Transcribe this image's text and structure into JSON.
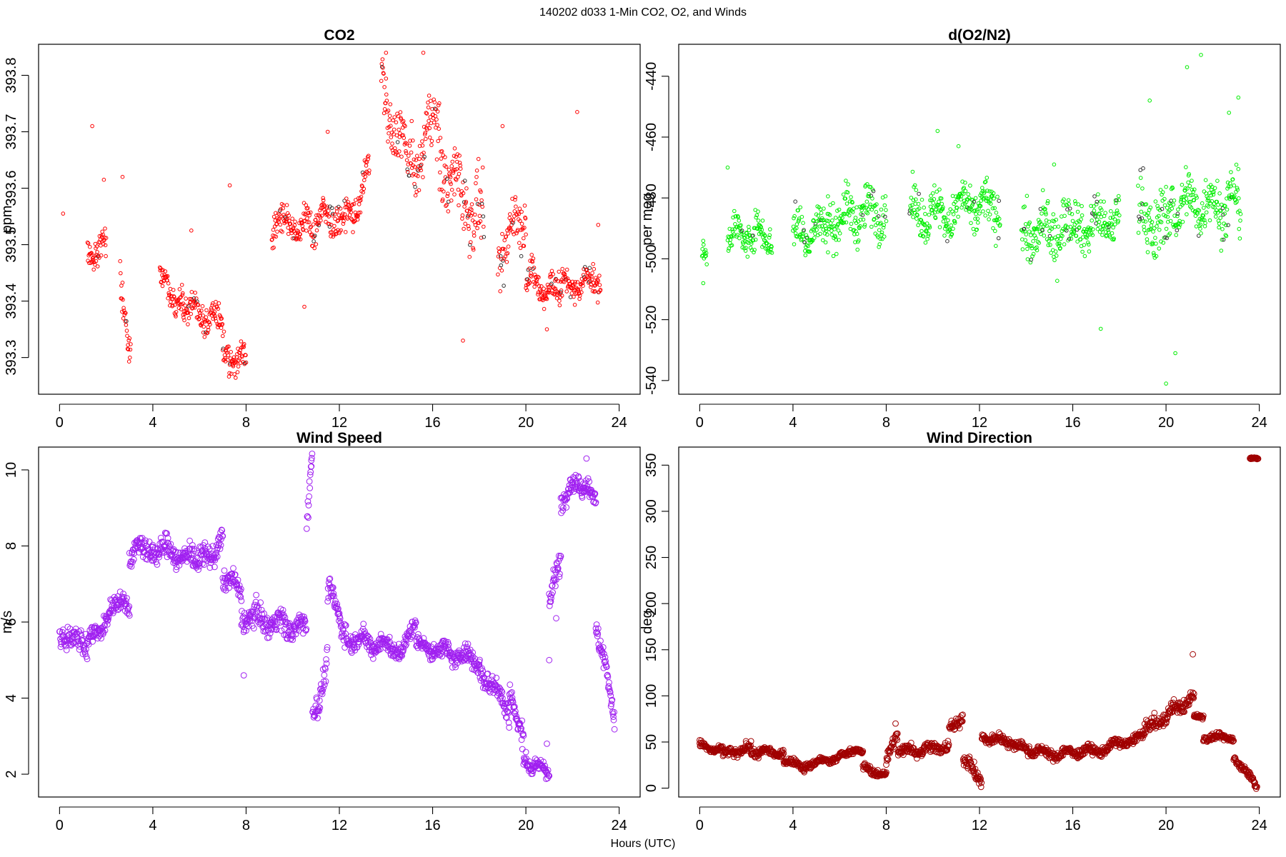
{
  "figure": {
    "suptitle": "140202   d033   1-Min CO2, O2, and Winds",
    "xlabel": "Hours (UTC)"
  },
  "chart_data": [
    {
      "type": "scatter",
      "title": "CO2",
      "xlabel": "",
      "ylabel": "ppm",
      "xlim": [
        -0.9,
        24.9
      ],
      "ylim": [
        393.235,
        393.855
      ],
      "xticks": [
        0,
        4,
        8,
        12,
        16,
        20,
        24
      ],
      "yticks": [
        393.3,
        393.4,
        393.5,
        393.6,
        393.7,
        393.8
      ],
      "ytick_labels": [
        "393.3",
        "393.4",
        "393.5",
        "393.6",
        "393.7",
        "393.8"
      ],
      "color": "#ff0000",
      "marker_size": 2.3,
      "segments": [
        [
          0.1,
          0.25,
          393.48,
          0.05,
          393.48,
          0.03
        ],
        [
          1.2,
          2.0,
          393.49,
          393.49,
          0.04,
          0.03
        ],
        [
          2.6,
          3.05,
          393.44,
          393.32,
          0.04,
          0.03
        ],
        [
          4.3,
          5.3,
          393.44,
          393.39,
          0.04,
          0.025
        ],
        [
          5.3,
          7.0,
          393.39,
          393.36,
          0.04,
          0.025
        ],
        [
          7.0,
          8.0,
          393.31,
          393.29,
          0.04,
          0.025
        ],
        [
          9.1,
          10.8,
          393.54,
          393.53,
          0.04,
          0.03
        ],
        [
          10.8,
          12.0,
          393.53,
          393.56,
          0.05,
          0.03
        ],
        [
          12.0,
          13.3,
          393.52,
          393.62,
          0.05,
          0.035
        ],
        [
          13.8,
          15.0,
          393.78,
          393.63,
          0.08,
          0.06
        ],
        [
          15.0,
          16.3,
          393.63,
          393.73,
          0.08,
          0.06
        ],
        [
          16.3,
          18.2,
          393.65,
          393.53,
          0.1,
          0.05
        ],
        [
          18.8,
          20.0,
          393.47,
          393.57,
          0.08,
          0.05
        ],
        [
          20.0,
          21.5,
          393.44,
          393.41,
          0.05,
          0.03
        ],
        [
          21.5,
          23.2,
          393.42,
          393.44,
          0.04,
          0.025
        ]
      ],
      "points": [
        {
          "x": 0.15,
          "y": 393.555
        },
        {
          "x": 1.4,
          "y": 393.71
        },
        {
          "x": 1.9,
          "y": 393.615
        },
        {
          "x": 2.7,
          "y": 393.62
        },
        {
          "x": 5.65,
          "y": 393.525
        },
        {
          "x": 7.3,
          "y": 393.605
        },
        {
          "x": 7.4,
          "y": 393.295
        },
        {
          "x": 10.5,
          "y": 393.39
        },
        {
          "x": 11.5,
          "y": 393.7
        },
        {
          "x": 14.0,
          "y": 393.84
        },
        {
          "x": 15.6,
          "y": 393.84
        },
        {
          "x": 17.3,
          "y": 393.33
        },
        {
          "x": 19.0,
          "y": 393.71
        },
        {
          "x": 20.9,
          "y": 393.35
        },
        {
          "x": 22.2,
          "y": 393.735
        },
        {
          "x": 23.1,
          "y": 393.535
        }
      ]
    },
    {
      "type": "scatter",
      "title": "d(O2/N2)",
      "xlabel": "",
      "ylabel": "per meg",
      "xlim": [
        -0.9,
        24.9
      ],
      "ylim": [
        -544.5,
        -429.5
      ],
      "xticks": [
        0,
        4,
        8,
        12,
        16,
        20,
        24
      ],
      "yticks": [
        -540,
        -520,
        -500,
        -480,
        -460,
        -440
      ],
      "ytick_labels": [
        "-540",
        "-520",
        "-500",
        "-480",
        "-460",
        "-440"
      ],
      "color": "#00ee00",
      "marker_size": 2.3,
      "segments": [
        [
          0.1,
          0.3,
          -497,
          -497,
          6,
          4
        ],
        [
          1.2,
          3.1,
          -492,
          -492,
          9,
          5
        ],
        [
          4.0,
          5.5,
          -492,
          -490,
          12,
          6
        ],
        [
          5.5,
          8.0,
          -487,
          -484,
          12,
          6
        ],
        [
          9.0,
          10.8,
          -485,
          -485,
          12,
          6
        ],
        [
          10.8,
          12.9,
          -483,
          -483,
          12,
          6
        ],
        [
          13.8,
          16.0,
          -492,
          -490,
          14,
          7
        ],
        [
          16.0,
          18.0,
          -490,
          -487,
          12,
          6
        ],
        [
          18.8,
          20.2,
          -486,
          -490,
          18,
          9
        ],
        [
          20.2,
          23.2,
          -482,
          -482,
          15,
          8
        ]
      ],
      "points": [
        {
          "x": 0.15,
          "y": -508
        },
        {
          "x": 1.2,
          "y": -470
        },
        {
          "x": 10.2,
          "y": -458
        },
        {
          "x": 11.1,
          "y": -463
        },
        {
          "x": 15.2,
          "y": -469
        },
        {
          "x": 17.2,
          "y": -523
        },
        {
          "x": 20.0,
          "y": -541
        },
        {
          "x": 20.4,
          "y": -531
        },
        {
          "x": 20.9,
          "y": -437
        },
        {
          "x": 21.5,
          "y": -433
        },
        {
          "x": 22.7,
          "y": -452
        },
        {
          "x": 23.1,
          "y": -447
        },
        {
          "x": 19.3,
          "y": -448
        }
      ]
    },
    {
      "type": "scatter",
      "title": "Wind Speed",
      "xlabel": "",
      "ylabel": "m/s",
      "xlim": [
        -0.9,
        24.9
      ],
      "ylim": [
        1.4,
        10.6
      ],
      "xticks": [
        0,
        4,
        8,
        12,
        16,
        20,
        24
      ],
      "yticks": [
        2,
        4,
        6,
        8,
        10
      ],
      "ytick_labels": [
        "2",
        "4",
        "6",
        "8",
        "10"
      ],
      "color": "#a020f0",
      "marker_size": 3.9,
      "segments": [
        [
          0.0,
          1.2,
          5.7,
          5.4,
          0.5,
          0.3
        ],
        [
          1.2,
          2.5,
          5.4,
          6.5,
          0.4,
          0.25
        ],
        [
          2.5,
          3.0,
          6.5,
          6.3,
          0.4,
          0.2
        ],
        [
          3.0,
          4.0,
          7.8,
          8.0,
          0.5,
          0.3
        ],
        [
          4.0,
          6.0,
          8.0,
          7.6,
          0.5,
          0.3
        ],
        [
          6.0,
          7.0,
          7.6,
          8.1,
          0.5,
          0.3
        ],
        [
          7.0,
          7.8,
          7.2,
          6.8,
          0.4,
          0.3
        ],
        [
          7.8,
          10.6,
          6.2,
          5.8,
          0.5,
          0.3
        ],
        [
          10.6,
          10.85,
          8.5,
          10.2,
          0.6,
          0.4
        ],
        [
          10.85,
          11.5,
          3.5,
          5.0,
          0.6,
          0.4
        ],
        [
          11.5,
          12.3,
          6.8,
          5.8,
          0.5,
          0.3
        ],
        [
          12.3,
          14.5,
          5.6,
          5.3,
          0.4,
          0.25
        ],
        [
          14.5,
          15.3,
          5.3,
          5.8,
          0.4,
          0.25
        ],
        [
          15.3,
          18.0,
          5.4,
          5.0,
          0.4,
          0.25
        ],
        [
          18.0,
          19.3,
          4.8,
          3.7,
          0.5,
          0.3
        ],
        [
          19.3,
          19.9,
          4.2,
          3.0,
          0.5,
          0.3
        ],
        [
          19.9,
          21.0,
          2.4,
          2.0,
          0.3,
          0.2
        ],
        [
          21.0,
          21.5,
          6.2,
          7.8,
          0.6,
          0.4
        ],
        [
          21.5,
          22.5,
          9.3,
          9.7,
          0.4,
          0.3
        ],
        [
          22.5,
          23.0,
          9.8,
          9.0,
          0.4,
          0.3
        ],
        [
          23.0,
          23.8,
          6.0,
          3.5,
          0.5,
          0.3
        ]
      ],
      "points": [
        {
          "x": 7.9,
          "y": 4.6
        },
        {
          "x": 10.8,
          "y": 10.25
        },
        {
          "x": 22.6,
          "y": 10.3
        },
        {
          "x": 21.0,
          "y": 5.0
        },
        {
          "x": 20.9,
          "y": 2.8
        },
        {
          "x": 21.3,
          "y": 6.1
        }
      ]
    },
    {
      "type": "scatter",
      "title": "Wind Direction",
      "xlabel": "",
      "ylabel": "deg",
      "xlim": [
        -0.9,
        24.9
      ],
      "ylim": [
        -9.6,
        369.6
      ],
      "xticks": [
        0,
        4,
        8,
        12,
        16,
        20,
        24
      ],
      "yticks": [
        0,
        50,
        100,
        150,
        200,
        250,
        300,
        350
      ],
      "ytick_labels": [
        "0",
        "50",
        "100",
        "150",
        "200",
        "250",
        "300",
        "350"
      ],
      "color": "#a00000",
      "marker_size": 3.9,
      "segments": [
        [
          0.0,
          1.0,
          46,
          40,
          6,
          4
        ],
        [
          1.0,
          2.2,
          35,
          45,
          8,
          5
        ],
        [
          2.2,
          3.6,
          40,
          38,
          7,
          5
        ],
        [
          3.6,
          4.5,
          32,
          22,
          6,
          4
        ],
        [
          4.5,
          6.0,
          25,
          33,
          6,
          4
        ],
        [
          6.0,
          7.0,
          38,
          40,
          5,
          3
        ],
        [
          7.0,
          8.0,
          22,
          14,
          6,
          4
        ],
        [
          8.0,
          8.5,
          25,
          62,
          12,
          8
        ],
        [
          8.5,
          10.7,
          40,
          45,
          10,
          6
        ],
        [
          10.7,
          11.3,
          65,
          78,
          10,
          6
        ],
        [
          11.3,
          12.1,
          30,
          10,
          12,
          7
        ],
        [
          12.1,
          13.5,
          55,
          50,
          8,
          5
        ],
        [
          13.5,
          15.5,
          45,
          35,
          8,
          5
        ],
        [
          15.5,
          17.5,
          38,
          42,
          8,
          5
        ],
        [
          17.5,
          19.0,
          45,
          55,
          8,
          5
        ],
        [
          19.0,
          21.2,
          60,
          100,
          12,
          7
        ],
        [
          21.2,
          21.6,
          80,
          75,
          5,
          3
        ],
        [
          21.6,
          22.9,
          55,
          55,
          5,
          3
        ],
        [
          22.9,
          23.9,
          35,
          2,
          6,
          4
        ],
        [
          23.6,
          23.95,
          357,
          357,
          2,
          1
        ]
      ],
      "points": [
        {
          "x": 21.15,
          "y": 145
        },
        {
          "x": 0.0,
          "y": 52
        },
        {
          "x": 8.4,
          "y": 70
        }
      ]
    }
  ]
}
